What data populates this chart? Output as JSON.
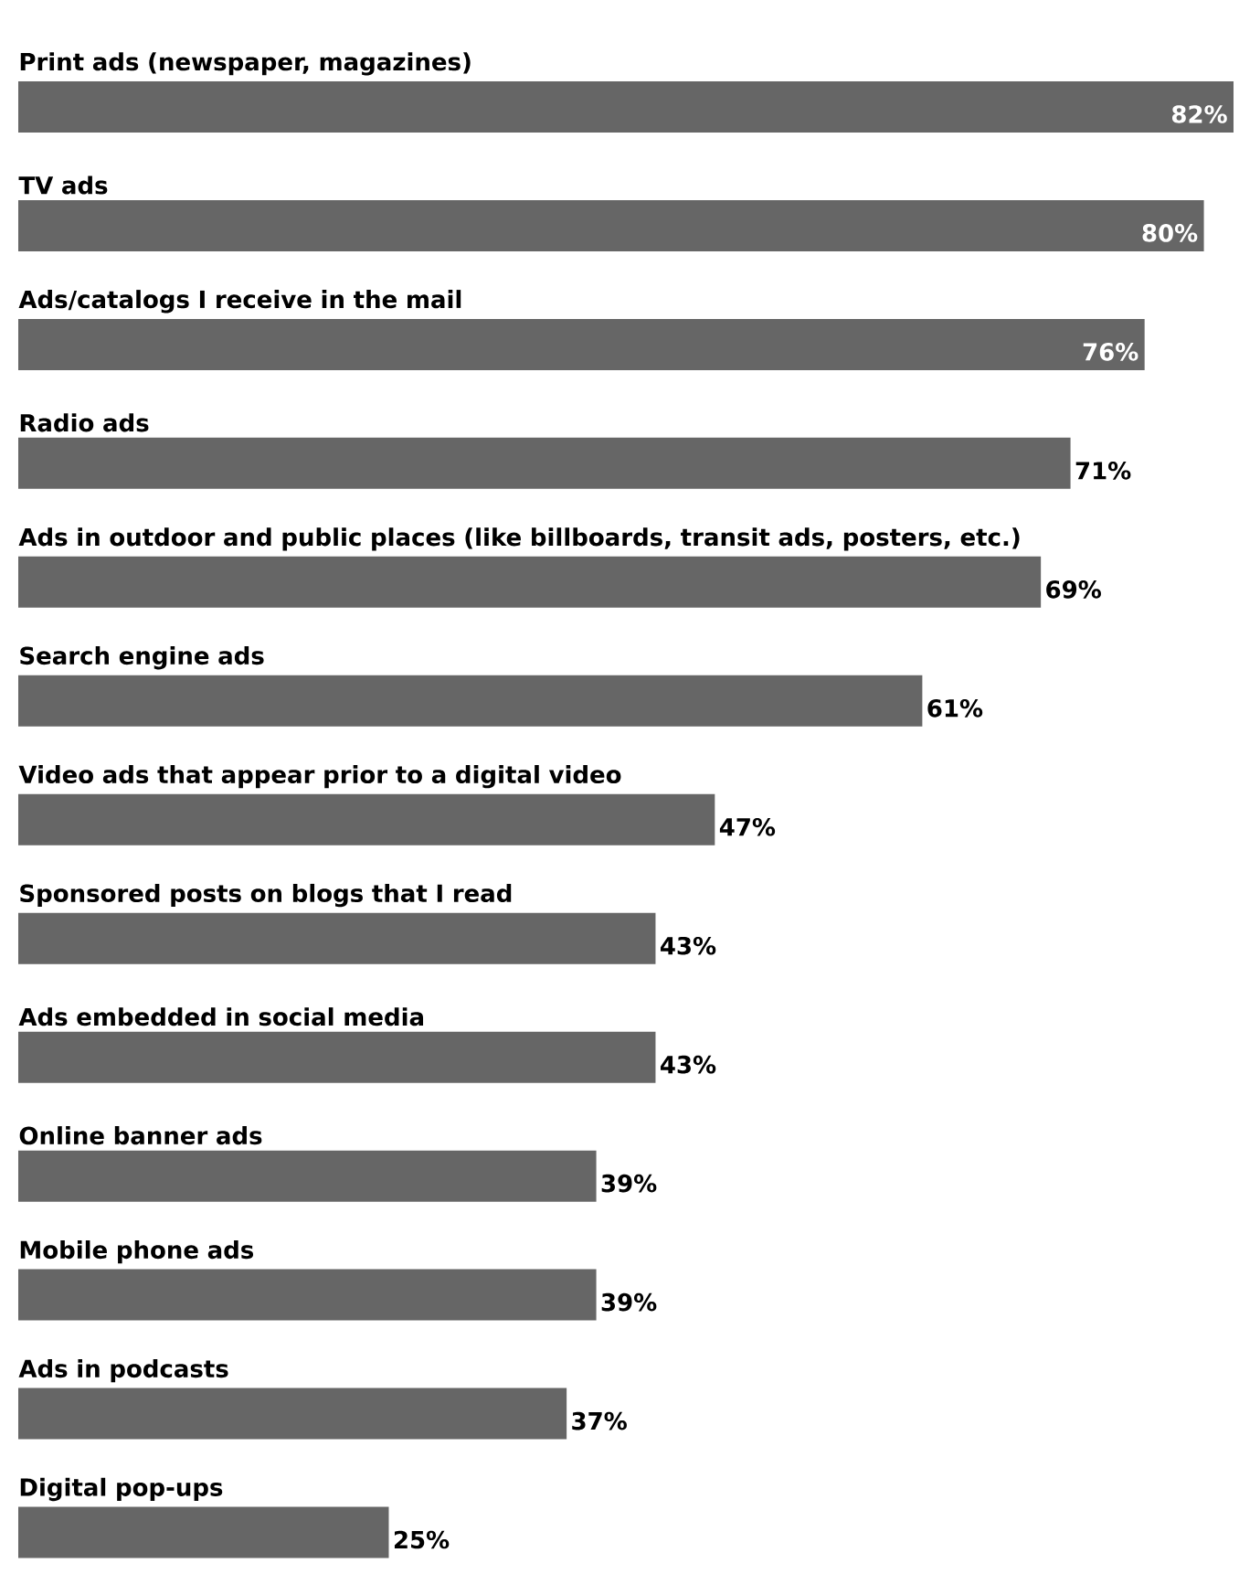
{
  "chart_data": {
    "type": "bar",
    "orientation": "horizontal",
    "color": "#666666",
    "categories": [
      "Print ads (newspaper, magazines)",
      "TV ads",
      "Ads/catalogs I receive in the mail",
      "Radio ads",
      "Ads in outdoor and public places (like billboards, transit ads, posters, etc.)",
      "Search engine ads",
      "Video ads that appear prior to a digital video",
      "Sponsored posts on blogs that I read",
      "Ads embedded in social media",
      "Online banner ads",
      "Mobile phone ads",
      "Ads in podcasts",
      "Digital pop-ups"
    ],
    "values": [
      82,
      80,
      76,
      71,
      69,
      61,
      47,
      43,
      43,
      39,
      39,
      37,
      25
    ],
    "value_labels": [
      "82%",
      "80%",
      "76%",
      "71%",
      "69%",
      "61%",
      "47%",
      "43%",
      "43%",
      "39%",
      "39%",
      "37%",
      "25%"
    ]
  }
}
